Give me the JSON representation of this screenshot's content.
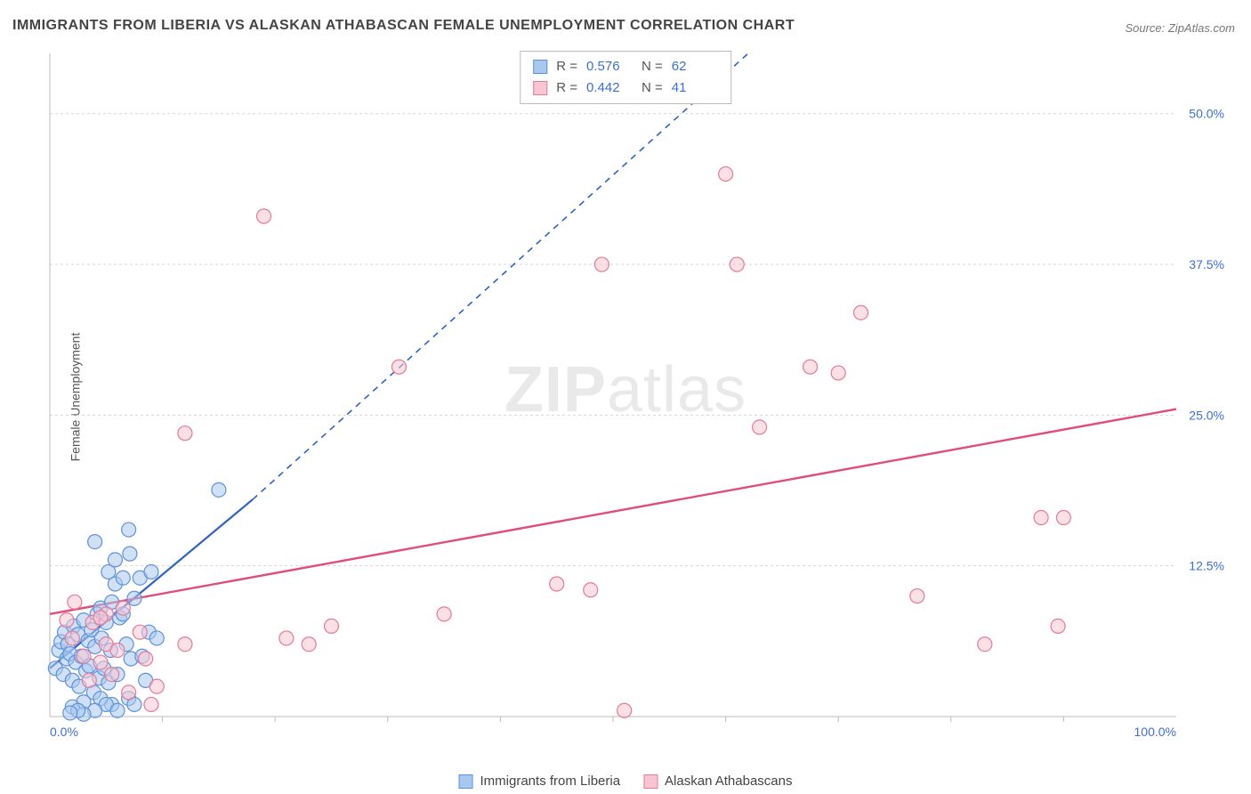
{
  "title": "IMMIGRANTS FROM LIBERIA VS ALASKAN ATHABASCAN FEMALE UNEMPLOYMENT CORRELATION CHART",
  "source": "Source: ZipAtlas.com",
  "ylabel": "Female Unemployment",
  "watermark_a": "ZIP",
  "watermark_b": "atlas",
  "chart": {
    "type": "scatter",
    "xlim": [
      0,
      100
    ],
    "ylim": [
      0,
      55
    ],
    "x_ticklabels": [
      {
        "x": 0,
        "label": "0.0%"
      },
      {
        "x": 100,
        "label": "100.0%"
      }
    ],
    "x_minor_ticks": [
      10,
      20,
      30,
      40,
      50,
      60,
      70,
      80,
      90
    ],
    "y_gridlabels": [
      {
        "y": 12.5,
        "label": "12.5%"
      },
      {
        "y": 25.0,
        "label": "25.0%"
      },
      {
        "y": 37.5,
        "label": "37.5%"
      },
      {
        "y": 50.0,
        "label": "50.0%"
      }
    ],
    "background_color": "#ffffff",
    "grid_color": "#d5d5d5",
    "marker_radius": 8,
    "marker_stroke_width": 1.2,
    "series": [
      {
        "name": "Immigrants from Liberia",
        "fill": "#a9c8ef",
        "fill_opacity": 0.55,
        "stroke": "#5e92d8",
        "R": "0.576",
        "N": "62",
        "trend": {
          "solid": {
            "x1": 0,
            "y1": 4.0,
            "x2": 18,
            "y2": 18.0
          },
          "dashed": {
            "x1": 18,
            "y1": 18.0,
            "x2": 62,
            "y2": 55.0
          },
          "color": "#2f62c5",
          "width": 2.2
        },
        "points": [
          [
            0.5,
            4.0
          ],
          [
            0.8,
            5.5
          ],
          [
            1.0,
            6.2
          ],
          [
            1.2,
            3.5
          ],
          [
            1.3,
            7.0
          ],
          [
            1.5,
            4.8
          ],
          [
            1.6,
            6.0
          ],
          [
            1.8,
            5.2
          ],
          [
            2.0,
            3.0
          ],
          [
            2.1,
            7.5
          ],
          [
            2.3,
            4.5
          ],
          [
            2.5,
            6.8
          ],
          [
            2.6,
            2.5
          ],
          [
            2.8,
            5.0
          ],
          [
            3.0,
            8.0
          ],
          [
            3.2,
            3.8
          ],
          [
            3.4,
            6.3
          ],
          [
            3.5,
            4.2
          ],
          [
            3.7,
            7.2
          ],
          [
            3.9,
            2.0
          ],
          [
            4.0,
            5.8
          ],
          [
            4.2,
            8.5
          ],
          [
            4.4,
            3.2
          ],
          [
            4.5,
            9.0
          ],
          [
            4.6,
            6.5
          ],
          [
            4.8,
            4.0
          ],
          [
            5.0,
            7.8
          ],
          [
            5.2,
            2.8
          ],
          [
            5.4,
            5.5
          ],
          [
            5.5,
            9.5
          ],
          [
            5.8,
            11.0
          ],
          [
            6.0,
            3.5
          ],
          [
            6.2,
            8.2
          ],
          [
            6.5,
            11.5
          ],
          [
            7.1,
            13.5
          ],
          [
            6.8,
            6.0
          ],
          [
            7.0,
            1.5
          ],
          [
            7.2,
            4.8
          ],
          [
            7.5,
            9.8
          ],
          [
            4.0,
            14.5
          ],
          [
            8.0,
            11.5
          ],
          [
            8.2,
            5.0
          ],
          [
            7.0,
            15.5
          ],
          [
            8.5,
            3.0
          ],
          [
            8.8,
            7.0
          ],
          [
            9.0,
            12.0
          ],
          [
            7.5,
            1.0
          ],
          [
            5.5,
            1.0
          ],
          [
            3.0,
            1.2
          ],
          [
            2.0,
            0.8
          ],
          [
            9.5,
            6.5
          ],
          [
            4.5,
            1.5
          ],
          [
            5.0,
            1.0
          ],
          [
            6.0,
            0.5
          ],
          [
            4.0,
            0.5
          ],
          [
            3.0,
            0.2
          ],
          [
            2.5,
            0.5
          ],
          [
            1.8,
            0.3
          ],
          [
            15.0,
            18.8
          ],
          [
            5.2,
            12.0
          ],
          [
            5.8,
            13.0
          ],
          [
            6.5,
            8.5
          ]
        ]
      },
      {
        "name": "Alaskan Athabascans",
        "fill": "#f7c6d2",
        "fill_opacity": 0.55,
        "stroke": "#e27a9a",
        "R": "0.442",
        "N": "41",
        "trend": {
          "solid": {
            "x1": 0,
            "y1": 8.5,
            "x2": 100,
            "y2": 25.5
          },
          "color": "#e04d7c",
          "width": 2.4
        },
        "points": [
          [
            2.0,
            6.5
          ],
          [
            3.0,
            5.0
          ],
          [
            3.5,
            3.0
          ],
          [
            4.5,
            4.5
          ],
          [
            5.0,
            6.0
          ],
          [
            5.5,
            3.5
          ],
          [
            6.0,
            5.5
          ],
          [
            7.0,
            2.0
          ],
          [
            8.0,
            7.0
          ],
          [
            8.5,
            4.8
          ],
          [
            9.5,
            2.5
          ],
          [
            19.0,
            41.5
          ],
          [
            12.0,
            23.5
          ],
          [
            21.0,
            6.5
          ],
          [
            23.0,
            6.0
          ],
          [
            25.0,
            7.5
          ],
          [
            12.0,
            6.0
          ],
          [
            35.0,
            8.5
          ],
          [
            31.0,
            29.0
          ],
          [
            45.0,
            11.0
          ],
          [
            49.0,
            37.5
          ],
          [
            51.0,
            0.5
          ],
          [
            60.0,
            45.0
          ],
          [
            61.0,
            37.5
          ],
          [
            63.0,
            24.0
          ],
          [
            67.5,
            29.0
          ],
          [
            70.0,
            28.5
          ],
          [
            72.0,
            33.5
          ],
          [
            77.0,
            10.0
          ],
          [
            83.0,
            6.0
          ],
          [
            88.0,
            16.5
          ],
          [
            90.0,
            16.5
          ],
          [
            89.5,
            7.5
          ],
          [
            1.5,
            8.0
          ],
          [
            2.2,
            9.5
          ],
          [
            5.0,
            8.5
          ],
          [
            9.0,
            1.0
          ],
          [
            3.8,
            7.8
          ],
          [
            4.5,
            8.2
          ],
          [
            6.5,
            9.0
          ],
          [
            48.0,
            10.5
          ]
        ]
      }
    ]
  },
  "stats_labels": {
    "R": "R  =",
    "N": "N  ="
  },
  "legend": {
    "s1": "Immigrants from Liberia",
    "s2": "Alaskan Athabascans"
  },
  "colors": {
    "blue_fill": "#a9c8ef",
    "blue_stroke": "#5e92d8",
    "pink_fill": "#f7c6d2",
    "pink_stroke": "#e27a9a",
    "axis_text": "#3b6fd6"
  }
}
